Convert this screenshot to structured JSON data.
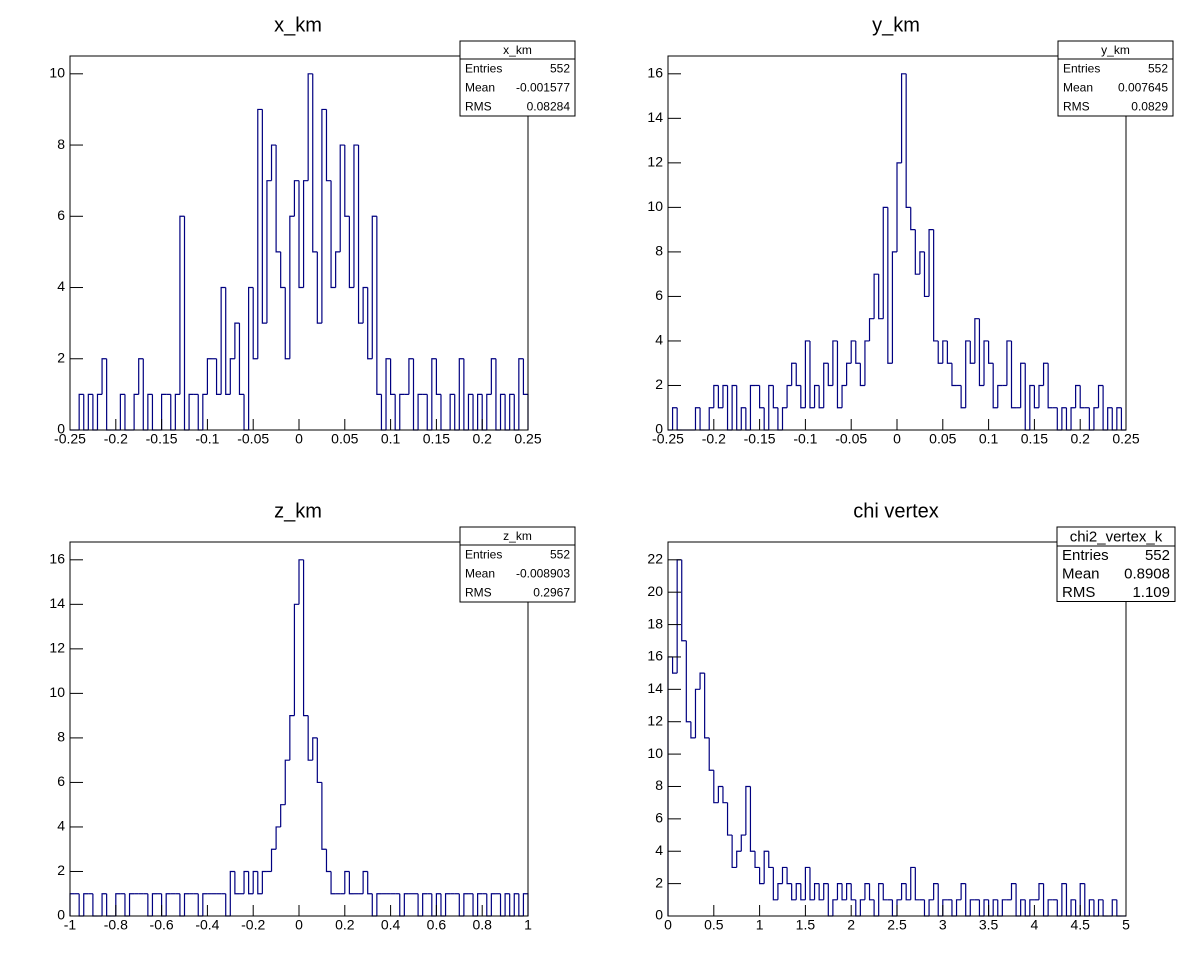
{
  "chart_data": [
    {
      "type": "histogram",
      "title": "x_km",
      "color": "#000080",
      "bins": [
        -0.25,
        -0.245,
        -0.24,
        -0.235,
        -0.23,
        -0.225,
        -0.22,
        -0.215,
        -0.21,
        -0.205,
        -0.2,
        -0.195,
        -0.19,
        -0.185,
        -0.18,
        -0.175,
        -0.17,
        -0.165,
        -0.16,
        -0.155,
        -0.15,
        -0.145,
        -0.14,
        -0.135,
        -0.13,
        -0.125,
        -0.12,
        -0.115,
        -0.11,
        -0.105,
        -0.1,
        -0.095,
        -0.09,
        -0.085,
        -0.08,
        -0.075,
        -0.07,
        -0.065,
        -0.06,
        -0.055,
        -0.05,
        -0.045,
        -0.04,
        -0.035,
        -0.03,
        -0.025,
        -0.02,
        -0.015,
        -0.01,
        -0.005,
        0,
        0.005,
        0.01,
        0.015,
        0.02,
        0.025,
        0.03,
        0.035,
        0.04,
        0.045,
        0.05,
        0.055,
        0.06,
        0.065,
        0.07,
        0.075,
        0.08,
        0.085,
        0.09,
        0.095,
        0.1,
        0.105,
        0.11,
        0.115,
        0.12,
        0.125,
        0.13,
        0.135,
        0.14,
        0.145,
        0.15,
        0.155,
        0.16,
        0.165,
        0.17,
        0.175,
        0.18,
        0.185,
        0.19,
        0.195,
        0.2,
        0.205,
        0.21,
        0.215,
        0.22,
        0.225,
        0.23,
        0.235,
        0.24,
        0.245,
        0.25
      ],
      "values": [
        0,
        0,
        1,
        0,
        1,
        0,
        1,
        2,
        0,
        0,
        0,
        1,
        0,
        0,
        1,
        2,
        0,
        1,
        0,
        0,
        1,
        1,
        0,
        1,
        6,
        0,
        1,
        1,
        0,
        1,
        2,
        2,
        1,
        4,
        1,
        2,
        3,
        1,
        0,
        4,
        2,
        9,
        3,
        7,
        8,
        5,
        4,
        2,
        6,
        7,
        4,
        7,
        10,
        5,
        3,
        9,
        7,
        4,
        5,
        8,
        6,
        4,
        8,
        3,
        4,
        2,
        6,
        1,
        0,
        2,
        1,
        0,
        1,
        1,
        2,
        0,
        1,
        1,
        0,
        2,
        1,
        0,
        0,
        1,
        0,
        2,
        0,
        1,
        0,
        1,
        0,
        1,
        2,
        0,
        1,
        0,
        1,
        0,
        2,
        1
      ],
      "xlim": [
        -0.25,
        0.25
      ],
      "ylim": [
        0,
        10.5
      ],
      "xticks": [
        -0.25,
        -0.2,
        -0.15,
        -0.1,
        -0.05,
        0,
        0.05,
        0.1,
        0.15,
        0.2,
        0.25
      ],
      "yticks": [
        0,
        2,
        4,
        6,
        8,
        10
      ],
      "stats": {
        "title": "x_km",
        "rows": [
          {
            "label": "Entries",
            "value": 552
          },
          {
            "label": "Mean",
            "value": -0.001577
          },
          {
            "label": "RMS",
            "value": 0.08284
          }
        ]
      }
    },
    {
      "type": "histogram",
      "title": "y_km",
      "color": "#000080",
      "bins": [
        -0.25,
        -0.245,
        -0.24,
        -0.235,
        -0.23,
        -0.225,
        -0.22,
        -0.215,
        -0.21,
        -0.205,
        -0.2,
        -0.195,
        -0.19,
        -0.185,
        -0.18,
        -0.175,
        -0.17,
        -0.165,
        -0.16,
        -0.155,
        -0.15,
        -0.145,
        -0.14,
        -0.135,
        -0.13,
        -0.125,
        -0.12,
        -0.115,
        -0.11,
        -0.105,
        -0.1,
        -0.095,
        -0.09,
        -0.085,
        -0.08,
        -0.075,
        -0.07,
        -0.065,
        -0.06,
        -0.055,
        -0.05,
        -0.045,
        -0.04,
        -0.035,
        -0.03,
        -0.025,
        -0.02,
        -0.015,
        -0.01,
        -0.005,
        0,
        0.005,
        0.01,
        0.015,
        0.02,
        0.025,
        0.03,
        0.035,
        0.04,
        0.045,
        0.05,
        0.055,
        0.06,
        0.065,
        0.07,
        0.075,
        0.08,
        0.085,
        0.09,
        0.095,
        0.1,
        0.105,
        0.11,
        0.115,
        0.12,
        0.125,
        0.13,
        0.135,
        0.14,
        0.145,
        0.15,
        0.155,
        0.16,
        0.165,
        0.17,
        0.175,
        0.18,
        0.185,
        0.19,
        0.195,
        0.2,
        0.205,
        0.21,
        0.215,
        0.22,
        0.225,
        0.23,
        0.235,
        0.24,
        0.245,
        0.25
      ],
      "values": [
        0,
        1,
        0,
        0,
        0,
        0,
        1,
        0,
        0,
        1,
        2,
        1,
        2,
        0,
        2,
        0,
        1,
        0,
        2,
        2,
        1,
        0,
        2,
        1,
        0,
        1,
        2,
        3,
        2,
        1,
        4,
        1,
        2,
        1,
        3,
        2,
        4,
        1,
        2,
        3,
        4,
        3,
        2,
        4,
        5,
        7,
        5,
        10,
        3,
        8,
        12,
        16,
        10,
        9,
        7,
        8,
        6,
        9,
        4,
        3,
        4,
        3,
        2,
        2,
        1,
        4,
        3,
        5,
        2,
        4,
        3,
        1,
        2,
        2,
        4,
        1,
        1,
        3,
        0,
        2,
        1,
        2,
        3,
        1,
        1,
        0,
        1,
        0,
        1,
        2,
        1,
        1,
        0,
        1,
        2,
        0,
        1,
        0,
        1,
        0
      ],
      "xlim": [
        -0.25,
        0.25
      ],
      "ylim": [
        0,
        16.8
      ],
      "xticks": [
        -0.25,
        -0.2,
        -0.15,
        -0.1,
        -0.05,
        0,
        0.05,
        0.1,
        0.15,
        0.2,
        0.25
      ],
      "yticks": [
        0,
        2,
        4,
        6,
        8,
        10,
        12,
        14,
        16
      ],
      "stats": {
        "title": "y_km",
        "rows": [
          {
            "label": "Entries",
            "value": 552
          },
          {
            "label": "Mean",
            "value": 0.007645
          },
          {
            "label": "RMS",
            "value": 0.0829
          }
        ]
      }
    },
    {
      "type": "histogram",
      "title": "z_km",
      "color": "#000080",
      "bins": [
        -1,
        -0.98,
        -0.96,
        -0.94,
        -0.92,
        -0.9,
        -0.88,
        -0.86,
        -0.84,
        -0.82,
        -0.8,
        -0.78,
        -0.76,
        -0.74,
        -0.72,
        -0.7,
        -0.68,
        -0.66,
        -0.64,
        -0.62,
        -0.6,
        -0.58,
        -0.56,
        -0.54,
        -0.52,
        -0.5,
        -0.48,
        -0.46,
        -0.44,
        -0.42,
        -0.4,
        -0.38,
        -0.36,
        -0.34,
        -0.32,
        -0.3,
        -0.28,
        -0.26,
        -0.24,
        -0.22,
        -0.2,
        -0.18,
        -0.16,
        -0.14,
        -0.12,
        -0.1,
        -0.08,
        -0.06,
        -0.04,
        -0.02,
        0,
        0.02,
        0.04,
        0.06,
        0.08,
        0.1,
        0.12,
        0.14,
        0.16,
        0.18,
        0.2,
        0.22,
        0.24,
        0.26,
        0.28,
        0.3,
        0.32,
        0.34,
        0.36,
        0.38,
        0.4,
        0.42,
        0.44,
        0.46,
        0.48,
        0.5,
        0.52,
        0.54,
        0.56,
        0.58,
        0.6,
        0.62,
        0.64,
        0.66,
        0.68,
        0.7,
        0.72,
        0.74,
        0.76,
        0.78,
        0.8,
        0.82,
        0.84,
        0.86,
        0.88,
        0.9,
        0.92,
        0.94,
        0.96,
        0.98,
        1
      ],
      "values": [
        1,
        1,
        0,
        1,
        1,
        0,
        0,
        1,
        0,
        0,
        1,
        1,
        0,
        1,
        1,
        1,
        1,
        0,
        1,
        1,
        0,
        1,
        1,
        1,
        0,
        1,
        1,
        1,
        0,
        1,
        1,
        1,
        1,
        1,
        0,
        2,
        1,
        1,
        2,
        1,
        2,
        1,
        2,
        2,
        3,
        4,
        5,
        7,
        9,
        14,
        16,
        9,
        7,
        8,
        6,
        3,
        2,
        1,
        1,
        1,
        2,
        1,
        1,
        1,
        2,
        1,
        0,
        1,
        1,
        1,
        1,
        1,
        0,
        1,
        1,
        1,
        0,
        1,
        1,
        0,
        1,
        0,
        1,
        1,
        1,
        0,
        1,
        1,
        0,
        1,
        1,
        0,
        1,
        1,
        0,
        1,
        0,
        1,
        0,
        1
      ],
      "xlim": [
        -1,
        1
      ],
      "ylim": [
        0,
        16.8
      ],
      "xticks": [
        -1,
        -0.8,
        -0.6,
        -0.4,
        -0.2,
        0,
        0.2,
        0.4,
        0.6,
        0.8,
        1
      ],
      "yticks": [
        0,
        2,
        4,
        6,
        8,
        10,
        12,
        14,
        16
      ],
      "stats": {
        "title": "z_km",
        "rows": [
          {
            "label": "Entries",
            "value": 552
          },
          {
            "label": "Mean",
            "value": -0.008903
          },
          {
            "label": "RMS",
            "value": 0.2967
          }
        ]
      }
    },
    {
      "type": "histogram",
      "title": "chi vertex",
      "color": "#000080",
      "bins": [
        0,
        0.05,
        0.1,
        0.15,
        0.2,
        0.25,
        0.3,
        0.35,
        0.4,
        0.45,
        0.5,
        0.55,
        0.6,
        0.65,
        0.7,
        0.75,
        0.8,
        0.85,
        0.9,
        0.95,
        1,
        1.05,
        1.1,
        1.15,
        1.2,
        1.25,
        1.3,
        1.35,
        1.4,
        1.45,
        1.5,
        1.55,
        1.6,
        1.65,
        1.7,
        1.75,
        1.8,
        1.85,
        1.9,
        1.95,
        2,
        2.05,
        2.1,
        2.15,
        2.2,
        2.25,
        2.3,
        2.35,
        2.4,
        2.45,
        2.5,
        2.55,
        2.6,
        2.65,
        2.7,
        2.75,
        2.8,
        2.85,
        2.9,
        2.95,
        3,
        3.05,
        3.1,
        3.15,
        3.2,
        3.25,
        3.3,
        3.35,
        3.4,
        3.45,
        3.5,
        3.55,
        3.6,
        3.65,
        3.7,
        3.75,
        3.8,
        3.85,
        3.9,
        3.95,
        4,
        4.05,
        4.1,
        4.15,
        4.2,
        4.25,
        4.3,
        4.35,
        4.4,
        4.45,
        4.5,
        4.55,
        4.6,
        4.65,
        4.7,
        4.75,
        4.8,
        4.85,
        4.9,
        4.95,
        5
      ],
      "values": [
        16,
        15,
        22,
        17,
        12,
        11,
        14,
        15,
        11,
        9,
        7,
        8,
        7,
        5,
        3,
        4,
        5,
        8,
        4,
        3,
        2,
        4,
        3,
        1,
        2,
        3,
        2,
        1,
        2,
        1,
        3,
        1,
        2,
        1,
        2,
        0,
        1,
        2,
        1,
        2,
        1,
        0,
        1,
        2,
        1,
        0,
        2,
        1,
        1,
        0,
        1,
        2,
        1,
        3,
        1,
        1,
        0,
        1,
        2,
        0,
        1,
        1,
        0,
        1,
        2,
        0,
        1,
        1,
        0,
        1,
        0,
        1,
        0,
        1,
        1,
        2,
        0,
        1,
        0,
        1,
        1,
        2,
        0,
        1,
        1,
        0,
        2,
        0,
        1,
        0,
        2,
        0,
        1,
        0,
        1,
        0,
        0,
        1,
        0,
        0
      ],
      "xlim": [
        0,
        5
      ],
      "ylim": [
        0,
        23.1
      ],
      "xticks": [
        0,
        0.5,
        1,
        1.5,
        2,
        2.5,
        3,
        3.5,
        4,
        4.5,
        5
      ],
      "yticks": [
        0,
        2,
        4,
        6,
        8,
        10,
        12,
        14,
        16,
        18,
        20,
        22
      ],
      "stats": {
        "title": "chi2_vertex_k",
        "big": true,
        "rows": [
          {
            "label": "Entries",
            "value": 552
          },
          {
            "label": "Mean",
            "value": 0.8908
          },
          {
            "label": "RMS",
            "value": 1.109
          }
        ]
      }
    }
  ]
}
